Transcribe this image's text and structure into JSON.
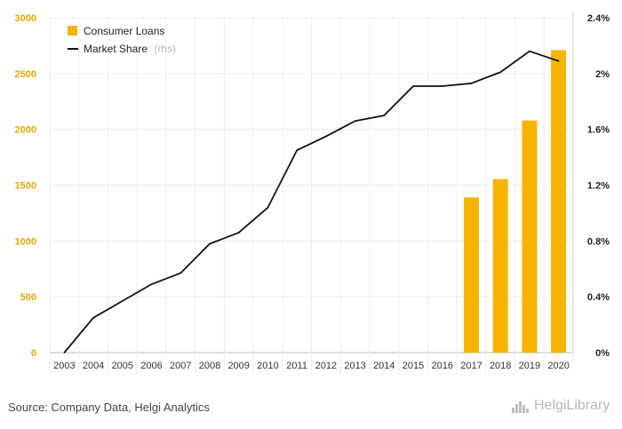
{
  "chart_data": {
    "type": "bar",
    "categories": [
      "2003",
      "2004",
      "2005",
      "2006",
      "2007",
      "2008",
      "2009",
      "2010",
      "2011",
      "2012",
      "2013",
      "2014",
      "2015",
      "2016",
      "2017",
      "2018",
      "2019",
      "2020"
    ],
    "series": [
      {
        "name": "Consumer Loans",
        "type": "bar",
        "axis": "left",
        "color": "#f5b400",
        "values": [
          null,
          null,
          null,
          null,
          null,
          null,
          null,
          null,
          null,
          null,
          null,
          null,
          null,
          null,
          1390,
          1555,
          2080,
          2710
        ]
      },
      {
        "name": "Market Share",
        "type": "line",
        "axis": "right",
        "color": "#111111",
        "values": [
          0.0,
          0.25,
          0.37,
          0.49,
          0.57,
          0.78,
          0.86,
          1.04,
          1.45,
          1.55,
          1.66,
          1.7,
          1.91,
          1.91,
          1.93,
          2.01,
          2.16,
          2.09
        ]
      }
    ],
    "legend_note": "(rhs)",
    "left_axis": {
      "ylim": [
        0,
        3000
      ],
      "ticks": [
        "0",
        "500",
        "1000",
        "1500",
        "2000",
        "2500",
        "3000"
      ]
    },
    "right_axis": {
      "ylim": [
        0,
        2.4
      ],
      "ticks": [
        "0%",
        "0.4%",
        "0.8%",
        "1.2%",
        "1.6%",
        "2%",
        "2.4%"
      ]
    },
    "grid": true,
    "legend_position": "top-left"
  },
  "footer": {
    "source": "Source: Company Data, Helgi Analytics",
    "brand": "HelgiLibrary",
    "brand_suffix": "."
  }
}
